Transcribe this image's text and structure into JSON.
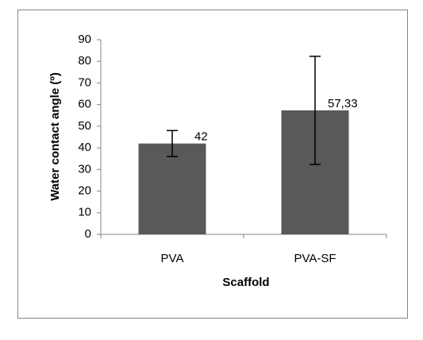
{
  "chart_data": {
    "type": "bar",
    "x_label": "Scaffold",
    "y_label": "Water contact angle (º)",
    "categories": [
      "PVA",
      "PVA-SF"
    ],
    "values": [
      42,
      57.33
    ],
    "value_labels": [
      "42",
      "57,33"
    ],
    "errors": [
      6,
      25
    ],
    "color": "#595959",
    "ylim": [
      0,
      90
    ],
    "yticks": [
      0,
      10,
      20,
      30,
      40,
      50,
      60,
      70,
      80,
      90
    ],
    "grid": false
  }
}
